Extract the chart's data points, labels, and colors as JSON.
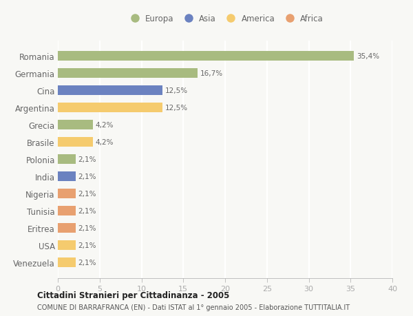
{
  "categories": [
    "Venezuela",
    "USA",
    "Eritrea",
    "Tunisia",
    "Nigeria",
    "India",
    "Polonia",
    "Brasile",
    "Grecia",
    "Argentina",
    "Cina",
    "Germania",
    "Romania"
  ],
  "values": [
    2.1,
    2.1,
    2.1,
    2.1,
    2.1,
    2.1,
    2.1,
    4.2,
    4.2,
    12.5,
    12.5,
    16.7,
    35.4
  ],
  "labels": [
    "2,1%",
    "2,1%",
    "2,1%",
    "2,1%",
    "2,1%",
    "2,1%",
    "2,1%",
    "4,2%",
    "4,2%",
    "12,5%",
    "12,5%",
    "16,7%",
    "35,4%"
  ],
  "colors": [
    "#f5cb6e",
    "#f5cb6e",
    "#e8a070",
    "#e8a070",
    "#e8a070",
    "#6b82c0",
    "#a8bb80",
    "#f5cb6e",
    "#a8bb80",
    "#f5cb6e",
    "#6b82c0",
    "#a8bb80",
    "#a8bb80"
  ],
  "legend_labels": [
    "Europa",
    "Asia",
    "America",
    "Africa"
  ],
  "legend_colors": [
    "#a8bb80",
    "#6b82c0",
    "#f5cb6e",
    "#e8a070"
  ],
  "xlim": [
    0,
    40
  ],
  "xticks": [
    0,
    5,
    10,
    15,
    20,
    25,
    30,
    35,
    40
  ],
  "title": "Cittadini Stranieri per Cittadinanza - 2005",
  "subtitle": "COMUNE DI BARRAFRANCA (EN) - Dati ISTAT al 1° gennaio 2005 - Elaborazione TUTTITALIA.IT",
  "bg_color": "#f8f8f5",
  "bar_height": 0.55,
  "grid_color": "#ffffff",
  "tick_color": "#aaaaaa",
  "label_color": "#666666",
  "title_color": "#222222",
  "subtitle_color": "#555555"
}
